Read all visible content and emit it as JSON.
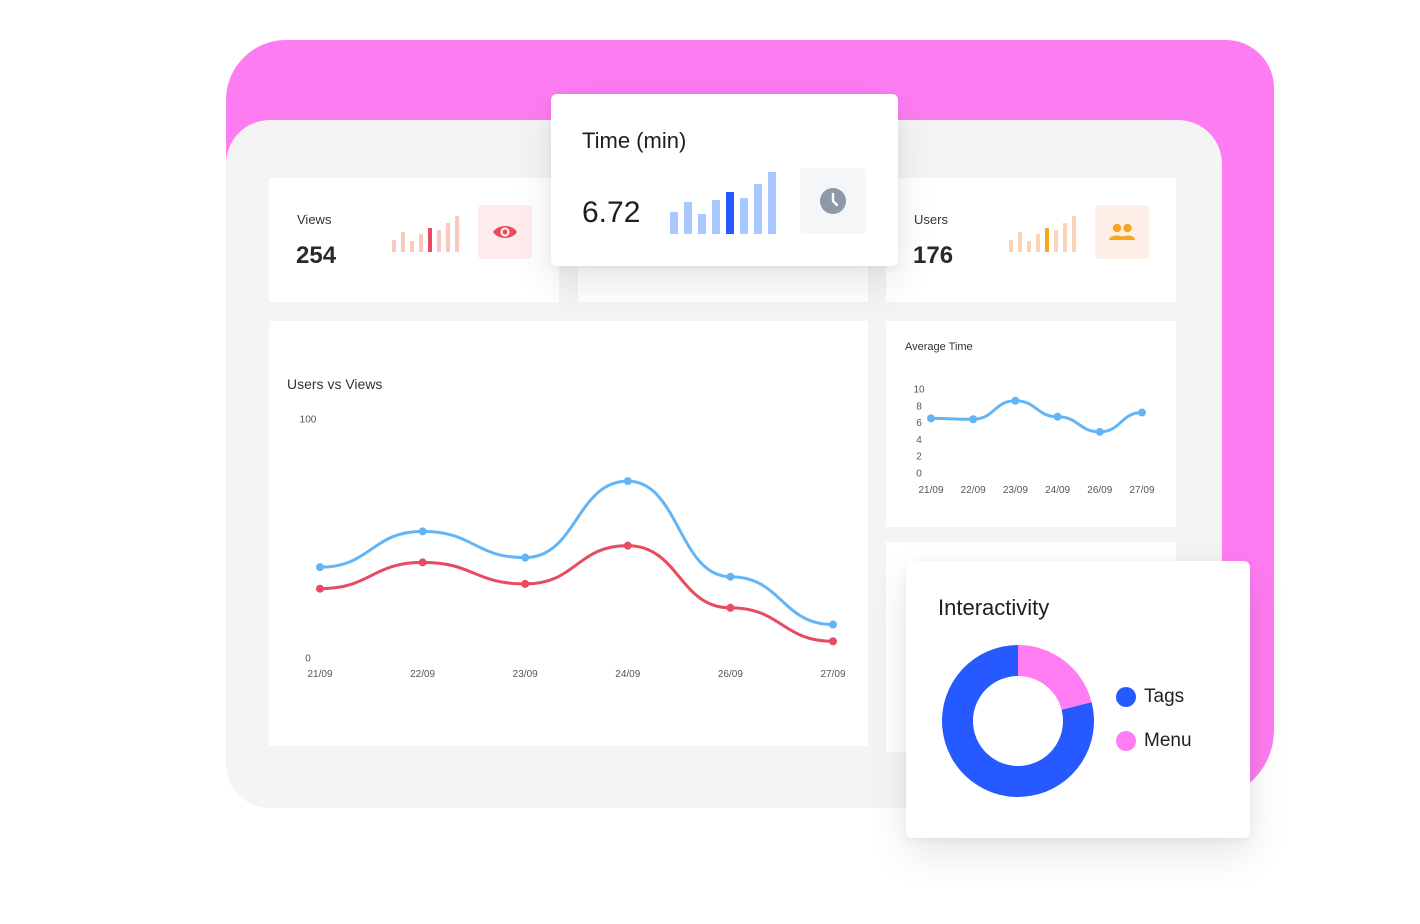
{
  "colors": {
    "accent_pink": "#fd7cf1",
    "views_red": "#e84a5f",
    "users_orange": "#f5a623",
    "time_blue": "#2659ff",
    "line_blue": "#64b5f6",
    "tags_blue": "#2659ff",
    "menu_pink": "#ff7cf2"
  },
  "cards": {
    "views": {
      "label": "Views",
      "value": "254",
      "icon": "eye-icon"
    },
    "time": {
      "label": "Time (min)",
      "value": "6.72",
      "icon": "clock-icon"
    },
    "users": {
      "label": "Users",
      "value": "176",
      "icon": "users-icon"
    }
  },
  "chart_data": [
    {
      "type": "line",
      "title": "Users vs Views",
      "categories": [
        "21/09",
        "22/09",
        "23/09",
        "24/09",
        "26/09",
        "27/09"
      ],
      "ylim": [
        0,
        100
      ],
      "yticks": [
        "100",
        "0"
      ],
      "series": [
        {
          "values": [
            38,
            53,
            42,
            74,
            34,
            14
          ],
          "color": "#64b5f6"
        },
        {
          "values": [
            29,
            40,
            31,
            47,
            21,
            7
          ],
          "color": "#e84a5f"
        }
      ]
    },
    {
      "type": "line",
      "title": "Average Time",
      "categories": [
        "21/09",
        "22/09",
        "23/09",
        "24/09",
        "26/09",
        "27/09"
      ],
      "ylim": [
        0,
        10
      ],
      "yticks": [
        "10",
        "8",
        "6",
        "4",
        "2",
        "0"
      ],
      "series": [
        {
          "values": [
            6.5,
            6.4,
            8.6,
            6.7,
            4.9,
            7.2
          ],
          "color": "#64b5f6"
        }
      ]
    },
    {
      "type": "pie",
      "title": "Interactivity",
      "series": [
        {
          "name": "Tags",
          "value": 79,
          "color": "#2659ff"
        },
        {
          "name": "Menu",
          "value": 21,
          "color": "#ff7cf2"
        }
      ]
    }
  ]
}
